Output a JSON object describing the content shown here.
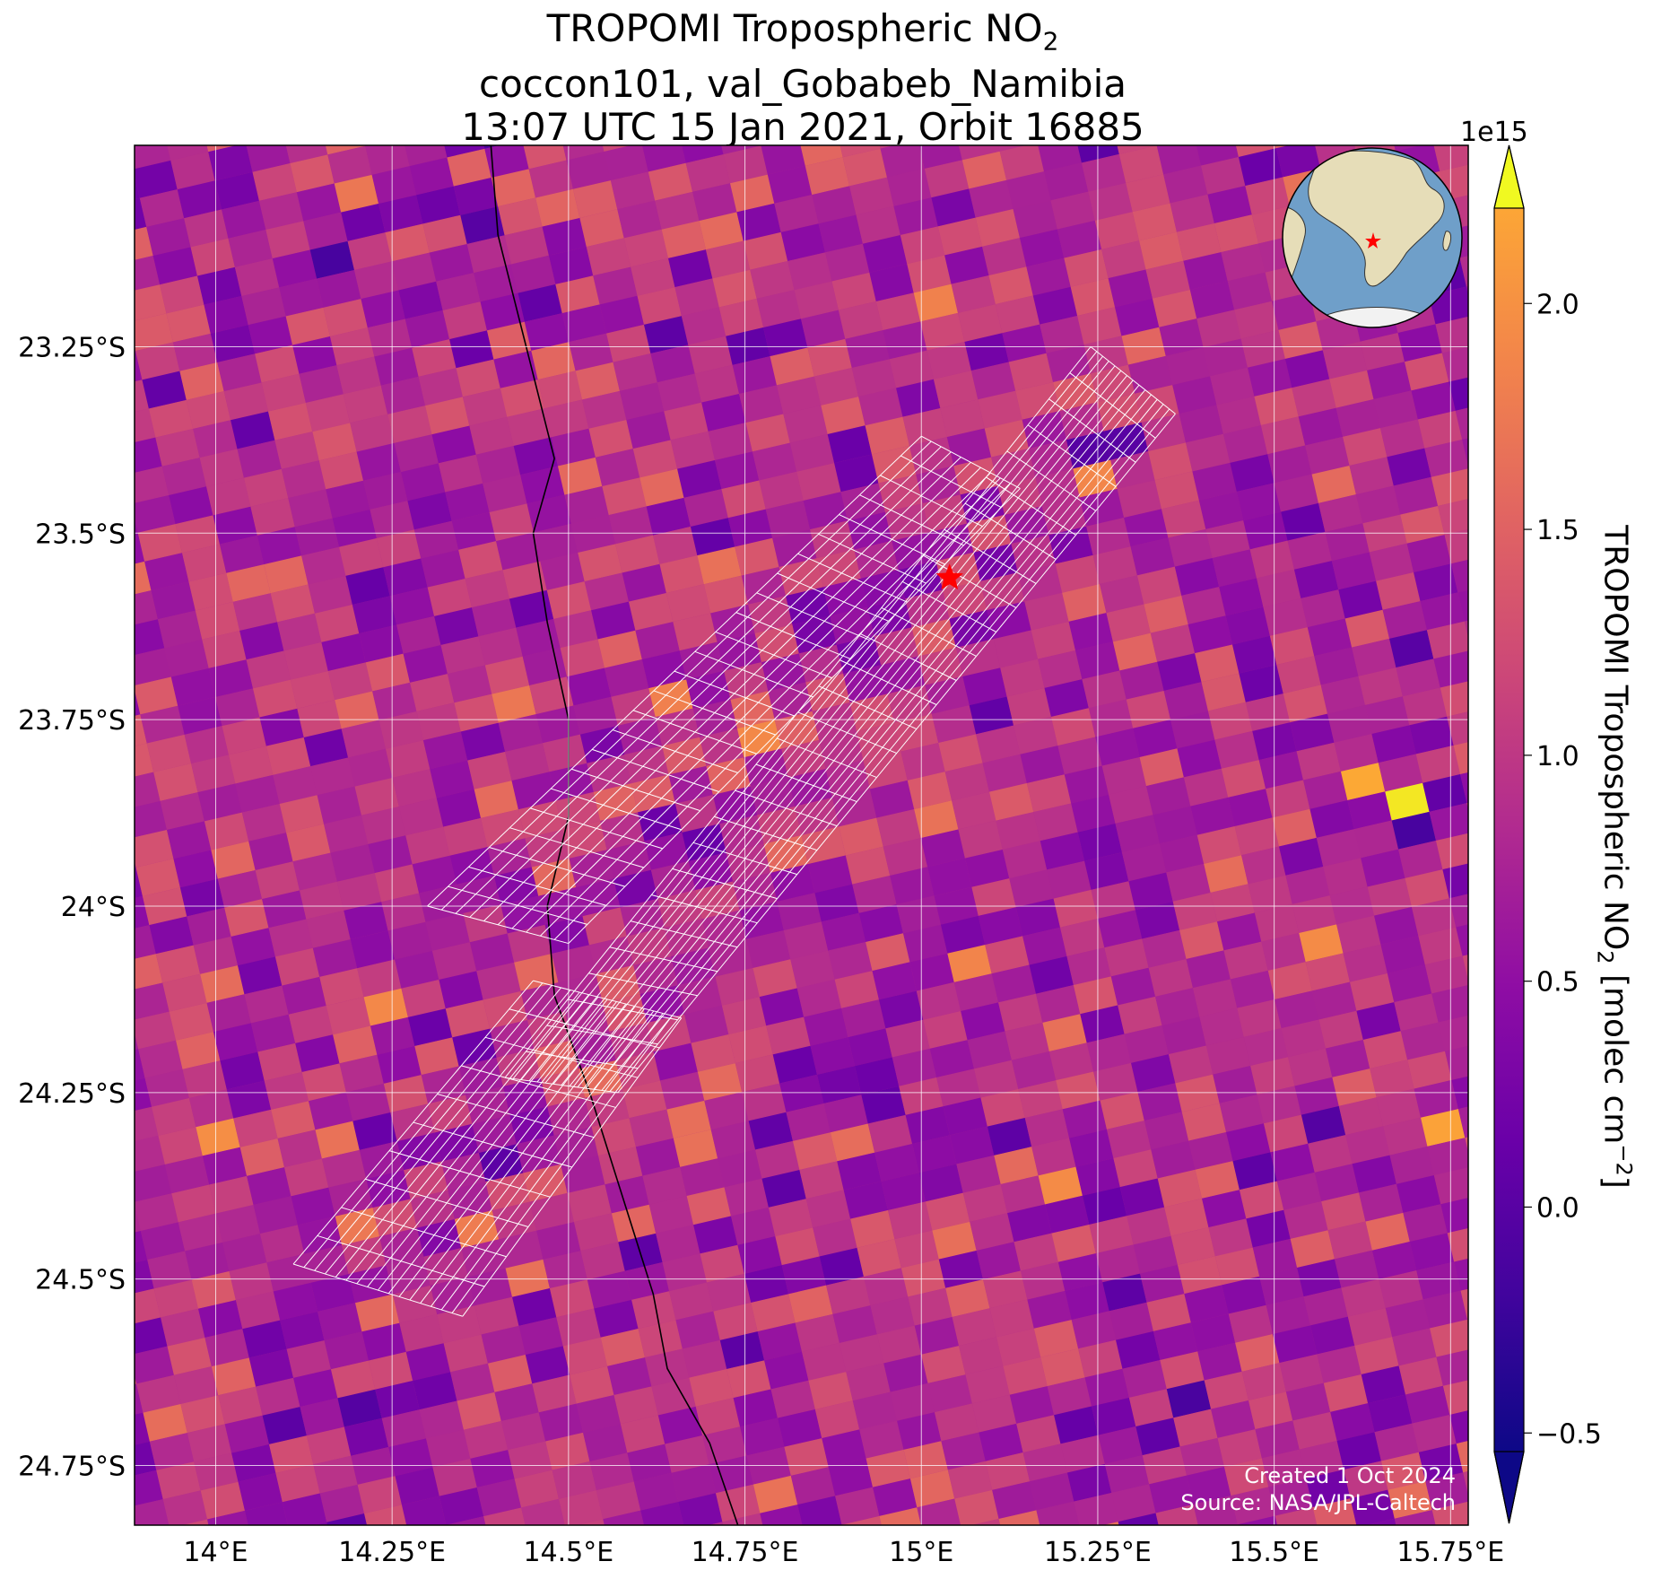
{
  "title": {
    "line1_prefix": "TROPOMI Tropospheric NO",
    "line1_sub": "2",
    "line2": "coccon101, val_Gobabeb_Namibia",
    "line3": "13:07 UTC 15 Jan 2021, Orbit 16885"
  },
  "map": {
    "extent": {
      "lon": [
        13.885,
        15.775
      ],
      "lat": [
        -24.83,
        -22.98
      ]
    },
    "lon_ticks": [
      {
        "value": 14.0,
        "label": "14°E"
      },
      {
        "value": 14.25,
        "label": "14.25°E"
      },
      {
        "value": 14.5,
        "label": "14.5°E"
      },
      {
        "value": 14.75,
        "label": "14.75°E"
      },
      {
        "value": 15.0,
        "label": "15°E"
      },
      {
        "value": 15.25,
        "label": "15.25°E"
      },
      {
        "value": 15.5,
        "label": "15.5°E"
      },
      {
        "value": 15.75,
        "label": "15.75°E"
      }
    ],
    "lat_ticks": [
      {
        "value": -23.25,
        "label": "23.25°S"
      },
      {
        "value": -23.5,
        "label": "23.5°S"
      },
      {
        "value": -23.75,
        "label": "23.75°S"
      },
      {
        "value": -24.0,
        "label": "24°S"
      },
      {
        "value": -24.25,
        "label": "24.25°S"
      },
      {
        "value": -24.5,
        "label": "24.5°S"
      },
      {
        "value": -24.75,
        "label": "24.75°S"
      }
    ],
    "site": {
      "name": "val_Gobabeb_Namibia",
      "lon": 15.04,
      "lat": -23.56,
      "color": "#ff0000"
    },
    "coastline": [
      [
        14.39,
        -22.98
      ],
      [
        14.4,
        -23.1
      ],
      [
        14.44,
        -23.25
      ],
      [
        14.48,
        -23.4
      ],
      [
        14.45,
        -23.5
      ],
      [
        14.47,
        -23.62
      ],
      [
        14.5,
        -23.75
      ],
      [
        14.5,
        -23.88
      ],
      [
        14.47,
        -24.0
      ],
      [
        14.48,
        -24.12
      ],
      [
        14.53,
        -24.25
      ],
      [
        14.58,
        -24.4
      ],
      [
        14.62,
        -24.52
      ],
      [
        14.64,
        -24.62
      ],
      [
        14.7,
        -24.72
      ],
      [
        14.74,
        -24.83
      ]
    ],
    "footprint_swaths": [
      {
        "corners": [
          [
            15.36,
            -23.34
          ],
          [
            14.57,
            -24.25
          ],
          [
            14.41,
            -24.23
          ],
          [
            15.24,
            -23.25
          ]
        ],
        "cols": 14,
        "rows": 28
      },
      {
        "corners": [
          [
            15.14,
            -23.44
          ],
          [
            14.5,
            -24.05
          ],
          [
            14.3,
            -24.0
          ],
          [
            15.0,
            -23.37
          ]
        ],
        "cols": 10,
        "rows": 24
      },
      {
        "corners": [
          [
            14.66,
            -24.15
          ],
          [
            14.35,
            -24.55
          ],
          [
            14.11,
            -24.48
          ],
          [
            14.45,
            -24.1
          ]
        ],
        "cols": 16,
        "rows": 10
      }
    ],
    "colormap": "plasma",
    "value_range": [
      -0.7,
      2.35
    ],
    "value_distribution": {
      "mean": 0.55,
      "sd": 0.32
    },
    "hotspots": [
      {
        "lon": 15.68,
        "lat": -23.85,
        "value": 2.2
      },
      {
        "lon": 15.62,
        "lat": -23.83,
        "value": 1.75
      },
      {
        "lon": 15.75,
        "lat": -24.28,
        "value": 1.7
      },
      {
        "lon": 15.2,
        "lat": -24.37,
        "value": 1.5
      },
      {
        "lon": 15.23,
        "lat": -23.43,
        "value": 1.45
      },
      {
        "lon": 15.55,
        "lat": -24.06,
        "value": 1.5
      }
    ]
  },
  "colorbar": {
    "label_prefix": "TROPOMI Tropospheric NO",
    "label_sub": "2",
    "label_units": " [molec cm",
    "label_sup": "−2",
    "label_end": "]",
    "offset_text": "1e15",
    "range": [
      -0.7,
      2.35
    ],
    "ticks": [
      {
        "value": -0.5,
        "label": "−0.5"
      },
      {
        "value": 0.0,
        "label": "0.0"
      },
      {
        "value": 0.5,
        "label": "0.5"
      },
      {
        "value": 1.0,
        "label": "1.0"
      },
      {
        "value": 1.5,
        "label": "1.5"
      },
      {
        "value": 2.0,
        "label": "2.0"
      }
    ]
  },
  "inset_globe": {
    "marker_color": "#ff0000",
    "ocean_color": "#6f9fc9",
    "land_color": "#e6ddb8"
  },
  "credits": {
    "line1": "Created 1 Oct 2024",
    "line2": "Source: NASA/JPL-Caltech"
  }
}
